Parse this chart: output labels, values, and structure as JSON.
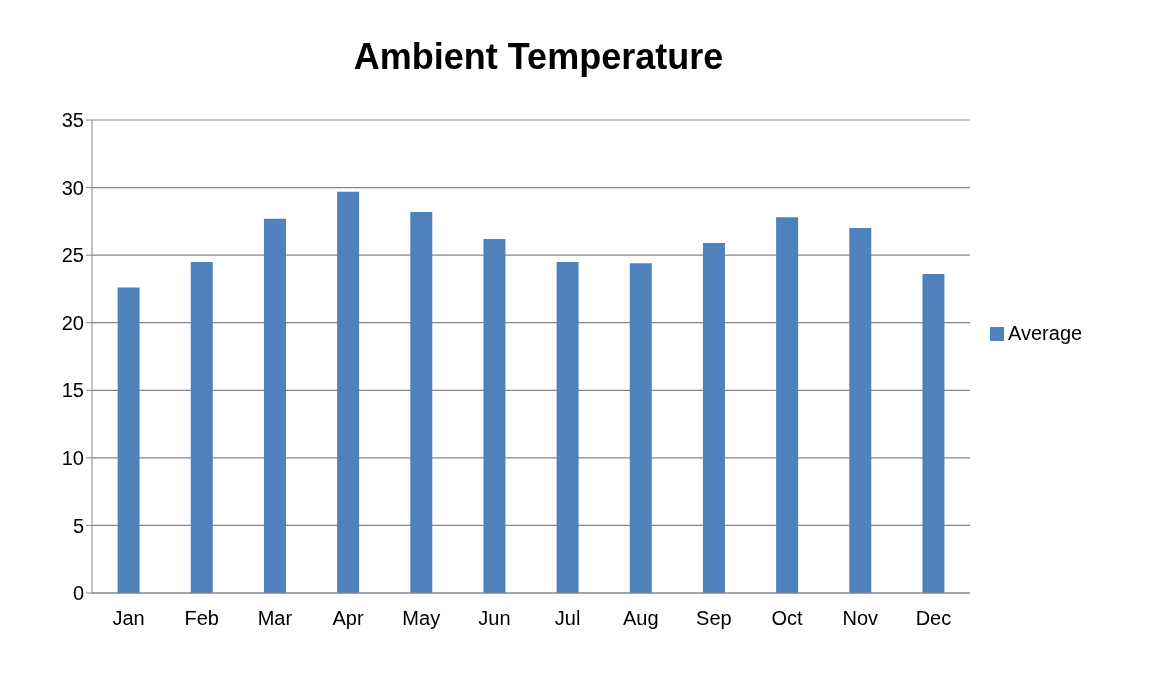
{
  "chart_data": {
    "type": "bar",
    "title": "Ambient  Temperature",
    "categories": [
      "Jan",
      "Feb",
      "Mar",
      "Apr",
      "May",
      "Jun",
      "Jul",
      "Aug",
      "Sep",
      "Oct",
      "Nov",
      "Dec"
    ],
    "series": [
      {
        "name": "Average",
        "color": "#4f81bd",
        "values": [
          22.6,
          24.5,
          27.7,
          29.7,
          28.2,
          26.2,
          24.5,
          24.4,
          25.9,
          27.8,
          27.0,
          23.6
        ]
      }
    ],
    "ylim": [
      0,
      35
    ],
    "yticks": [
      0,
      5,
      10,
      15,
      20,
      25,
      30,
      35
    ],
    "grid": "y",
    "legend": "right"
  }
}
